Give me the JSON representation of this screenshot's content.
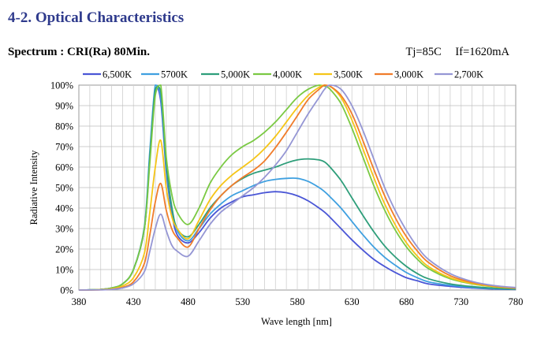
{
  "header": {
    "section_title": "4-2. Optical Characteristics",
    "spectrum_label": "Spectrum",
    "separator": ":",
    "spectrum_value": "CRI(Ra) 80Min.",
    "condition_tj": "Tj=85C",
    "condition_if": "If=1620mA"
  },
  "chart_data": {
    "type": "line",
    "xlabel": "Wave length [nm]",
    "ylabel": "Radiative Intensity",
    "xlim": [
      380,
      780
    ],
    "ylim": [
      0,
      100
    ],
    "x_ticks": [
      380,
      430,
      480,
      530,
      580,
      630,
      680,
      730,
      780
    ],
    "x_tick_labels": [
      "380",
      "430",
      "480",
      "530",
      "580",
      "630",
      "680",
      "730",
      "780"
    ],
    "y_ticks": [
      0,
      10,
      20,
      30,
      40,
      50,
      60,
      70,
      80,
      90,
      100
    ],
    "y_tick_labels": [
      "0%",
      "10%",
      "20%",
      "30%",
      "40%",
      "50%",
      "60%",
      "70%",
      "80%",
      "90%",
      "100%"
    ],
    "grid": true,
    "legend_position": "top",
    "x": [
      380,
      400,
      410,
      420,
      430,
      440,
      445,
      450,
      455,
      460,
      465,
      470,
      480,
      490,
      500,
      510,
      520,
      530,
      540,
      550,
      560,
      570,
      580,
      590,
      600,
      605,
      610,
      620,
      630,
      640,
      650,
      660,
      670,
      680,
      690,
      700,
      720,
      740,
      760,
      780
    ],
    "series": [
      {
        "name": "6,500K",
        "color": "#4a56d6",
        "values": [
          0,
          0.3,
          1,
          3,
          10,
          30,
          65,
          98,
          92,
          58,
          38,
          27,
          23,
          28,
          35,
          40,
          43,
          45.5,
          46.5,
          47.5,
          48,
          47.5,
          46,
          43.5,
          40,
          38,
          35.5,
          30,
          24.5,
          19.5,
          15,
          11.5,
          8.5,
          6,
          4.5,
          3,
          1.8,
          1,
          0.5,
          0.3
        ]
      },
      {
        "name": "5700K",
        "color": "#3fa0e0",
        "values": [
          0,
          0.3,
          1,
          3,
          10,
          31,
          68,
          100,
          94,
          60,
          40,
          29,
          24,
          30,
          37,
          42,
          46,
          48.5,
          51,
          53,
          54,
          54.5,
          54.5,
          53,
          50,
          48,
          45.5,
          40,
          33.5,
          27,
          21,
          16,
          12,
          8.5,
          6,
          4,
          2.3,
          1.3,
          0.7,
          0.4
        ]
      },
      {
        "name": "5,000K",
        "color": "#2e9e7a",
        "values": [
          0,
          0.3,
          1,
          3,
          10,
          30,
          65,
          98,
          97,
          62,
          41,
          30,
          26,
          32,
          40,
          46,
          51,
          54.5,
          57,
          58.5,
          60,
          62,
          63.5,
          64,
          63.5,
          62.5,
          60,
          53.5,
          45,
          36.5,
          28.5,
          21.5,
          16,
          11.5,
          8,
          5.5,
          3,
          1.7,
          0.9,
          0.5
        ]
      },
      {
        "name": "4,000K",
        "color": "#7ac943",
        "values": [
          0,
          0.3,
          1,
          3,
          10,
          30,
          62,
          95,
          100,
          65,
          47,
          38,
          32,
          40,
          52,
          60,
          66,
          70,
          73,
          77,
          82,
          88,
          94,
          98,
          100,
          99.5,
          98,
          91,
          79,
          65,
          51,
          39,
          29,
          21,
          15,
          10.5,
          5.5,
          3,
          1.6,
          0.9
        ]
      },
      {
        "name": "3,500K",
        "color": "#f5c518",
        "values": [
          0,
          0.2,
          0.6,
          2,
          6,
          18,
          38,
          60,
          73,
          50,
          36,
          30,
          25,
          34,
          44,
          51,
          56,
          60,
          64,
          69,
          75,
          82,
          89,
          95,
          99,
          100,
          99.5,
          94,
          83,
          69,
          55,
          42,
          31.5,
          23,
          16.5,
          11.5,
          6,
          3.2,
          1.7,
          0.9
        ]
      },
      {
        "name": "3,000K",
        "color": "#f07c2a",
        "values": [
          0,
          0.1,
          0.4,
          1.3,
          4,
          13,
          27,
          43,
          52,
          39,
          30,
          25.5,
          21,
          30,
          39,
          46,
          51,
          55,
          58.5,
          63,
          69.5,
          77,
          85,
          93,
          98,
          100,
          99.5,
          95,
          86,
          73,
          59,
          46,
          35,
          26,
          19,
          13.5,
          7,
          3.7,
          2,
          1
        ]
      },
      {
        "name": "2,700K",
        "color": "#9596d4",
        "values": [
          0,
          0.1,
          0.3,
          1,
          3,
          9,
          19,
          30,
          37,
          29,
          22,
          19,
          16.5,
          24,
          32,
          38,
          42,
          46,
          50,
          55,
          61,
          68,
          77,
          86,
          94,
          98,
          100,
          98,
          90,
          78,
          64,
          50,
          38.5,
          29,
          21,
          15,
          8,
          4.2,
          2.2,
          1.2
        ]
      }
    ]
  }
}
